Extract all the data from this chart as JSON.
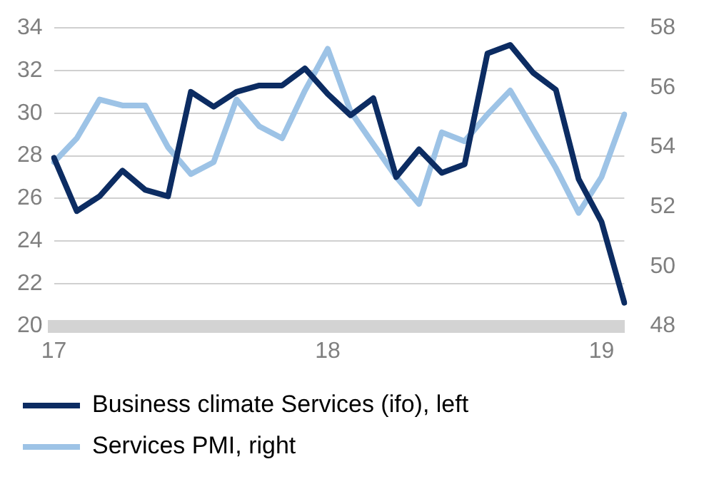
{
  "chart_data": {
    "type": "line",
    "categories": [
      "17",
      null,
      null,
      null,
      null,
      null,
      null,
      null,
      null,
      null,
      null,
      null,
      "18",
      null,
      null,
      null,
      null,
      null,
      null,
      null,
      null,
      null,
      null,
      null,
      "19",
      null
    ],
    "series": [
      {
        "name": "Business climate Services (ifo), left",
        "color": "#0c2c62",
        "values": [
          27.9,
          25.4,
          26.1,
          27.3,
          26.4,
          26.1,
          31.0,
          30.3,
          31.0,
          31.3,
          31.3,
          32.1,
          30.9,
          29.9,
          30.7,
          27.0,
          28.3,
          27.2,
          27.6,
          32.8,
          33.2,
          31.9,
          31.1,
          26.9,
          24.9,
          21.1
        ]
      },
      {
        "name": "Services PMI, right",
        "color": "#9dc3e6",
        "axis": "y2",
        "values": [
          53.5,
          54.3,
          55.6,
          55.4,
          55.4,
          54.0,
          53.1,
          53.5,
          55.6,
          54.7,
          54.3,
          55.9,
          57.3,
          55.2,
          54.1,
          53.0,
          52.1,
          54.5,
          54.2,
          55.1,
          55.9,
          54.6,
          53.3,
          51.8,
          53.0,
          55.1
        ]
      }
    ],
    "ylim": [
      20,
      34
    ],
    "yticks": [
      20,
      22,
      24,
      26,
      28,
      30,
      32,
      34
    ],
    "y2lim": [
      48,
      58
    ],
    "y2ticks": [
      48,
      50,
      52,
      54,
      56,
      58
    ],
    "grid": "y",
    "legend": "bottom",
    "marker": "none",
    "line_style": "solid"
  }
}
